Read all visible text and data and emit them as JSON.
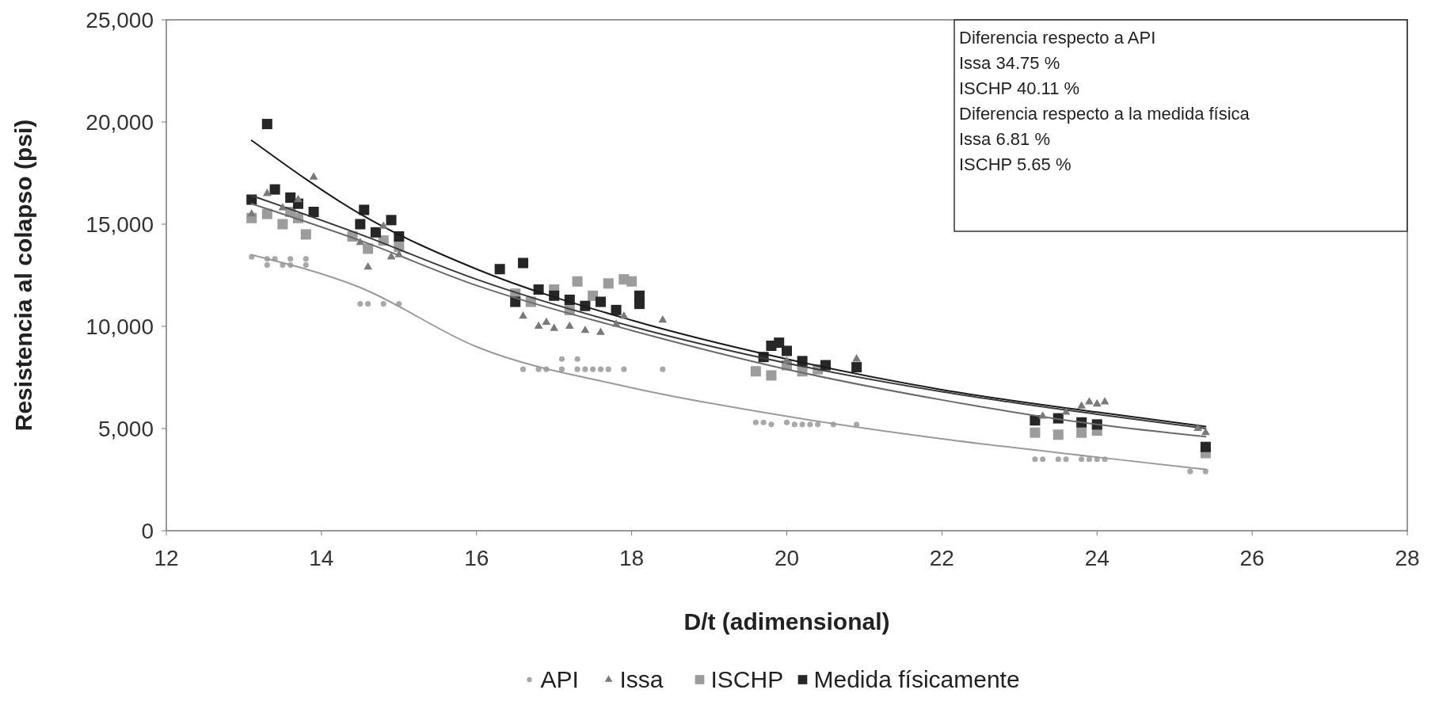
{
  "chart_data": {
    "type": "scatter",
    "xlabel": "D/t (adimensional)",
    "ylabel": "Resistencia al colapso (psi)",
    "xlim": [
      12,
      28
    ],
    "xticks": [
      12,
      14,
      16,
      18,
      20,
      22,
      24,
      26,
      28
    ],
    "ylim": [
      0,
      25000
    ],
    "yticks": [
      {
        "value": 0,
        "label": "0"
      },
      {
        "value": 5000,
        "label": "5,000"
      },
      {
        "value": 10000,
        "label": "10,000"
      },
      {
        "value": 15000,
        "label": "15,000"
      },
      {
        "value": 20000,
        "label": "20,000"
      },
      {
        "value": 25000,
        "label": "25,000"
      }
    ],
    "grid": false,
    "legend": "bottom",
    "annotations": [
      "Diferencia respecto a API",
      "Issa 34.75 %",
      "ISCHP 40.11 %",
      "Diferencia respecto a la medida física",
      "Issa 6.81 %",
      "ISCHP 5.65 %"
    ],
    "series": [
      {
        "name": "API",
        "marker": "circle",
        "color": "#a8a8a8",
        "x": [
          13.1,
          13.3,
          13.4,
          13.6,
          13.8,
          13.3,
          13.5,
          13.6,
          13.8,
          14.5,
          14.6,
          14.8,
          15.0,
          16.6,
          16.8,
          16.9,
          17.1,
          17.3,
          17.4,
          17.5,
          17.6,
          17.7,
          17.9,
          17.1,
          17.3,
          18.4,
          19.6,
          19.7,
          19.8,
          20.0,
          20.1,
          20.2,
          20.3,
          20.4,
          20.6,
          20.9,
          23.2,
          23.3,
          23.5,
          23.6,
          23.8,
          23.9,
          24.0,
          24.1,
          25.2,
          25.4
        ],
        "values": [
          13400,
          13300,
          13300,
          13300,
          13300,
          13000,
          13000,
          13000,
          13000,
          11100,
          11100,
          11100,
          11100,
          7900,
          7900,
          7900,
          7900,
          7900,
          7900,
          7900,
          7900,
          7900,
          7900,
          8400,
          8400,
          7900,
          5300,
          5300,
          5200,
          5300,
          5200,
          5200,
          5200,
          5200,
          5200,
          5200,
          3500,
          3500,
          3500,
          3500,
          3500,
          3500,
          3500,
          3500,
          2900,
          2900
        ]
      },
      {
        "name": "Issa",
        "marker": "triangle",
        "color": "#7a7a7a",
        "x": [
          13.1,
          13.3,
          13.5,
          13.7,
          13.9,
          14.5,
          14.6,
          14.8,
          14.9,
          15.0,
          16.6,
          16.8,
          16.9,
          17.0,
          17.2,
          17.4,
          17.6,
          17.8,
          17.9,
          18.4,
          20.0,
          20.9,
          23.3,
          23.6,
          23.8,
          23.9,
          24.0,
          24.1,
          25.3,
          25.4
        ],
        "values": [
          15500,
          16500,
          15800,
          16200,
          17300,
          14100,
          12900,
          14900,
          13400,
          13500,
          10500,
          10000,
          10200,
          9900,
          10000,
          9800,
          9700,
          10100,
          10500,
          10300,
          8300,
          8400,
          5600,
          5800,
          6100,
          6300,
          6200,
          6300,
          5000,
          4800
        ]
      },
      {
        "name": "ISCHP",
        "marker": "square",
        "color": "#9c9c9c",
        "x": [
          13.1,
          13.3,
          13.5,
          13.6,
          13.7,
          13.8,
          14.4,
          14.6,
          14.8,
          15.0,
          16.5,
          16.7,
          17.0,
          17.2,
          17.3,
          17.5,
          17.7,
          17.9,
          18.0,
          19.6,
          19.8,
          20.0,
          20.2,
          20.4,
          23.2,
          23.5,
          23.8,
          24.0,
          25.4
        ],
        "values": [
          15300,
          15500,
          15000,
          15600,
          15300,
          14500,
          14400,
          13800,
          14200,
          13900,
          11600,
          11200,
          11800,
          10800,
          12200,
          11500,
          12100,
          12300,
          12200,
          7800,
          7600,
          8100,
          7800,
          7900,
          4800,
          4700,
          4800,
          4900,
          3800
        ]
      },
      {
        "name": "Medida físicamente",
        "marker": "square",
        "color": "#262626",
        "x": [
          13.1,
          13.3,
          13.4,
          13.6,
          13.7,
          13.9,
          14.5,
          14.55,
          14.7,
          14.9,
          15.0,
          16.3,
          16.6,
          16.5,
          16.8,
          17.0,
          17.2,
          17.4,
          17.6,
          17.8,
          18.1,
          18.1,
          19.7,
          19.8,
          19.9,
          20.0,
          20.2,
          20.5,
          20.9,
          23.2,
          23.5,
          23.8,
          24.0,
          25.4
        ],
        "values": [
          16200,
          19900,
          16700,
          16300,
          16000,
          15600,
          15000,
          15700,
          14600,
          15200,
          14400,
          12800,
          13100,
          11200,
          11800,
          11500,
          11300,
          11000,
          11200,
          10800,
          11100,
          11500,
          8500,
          9050,
          9200,
          8800,
          8300,
          8100,
          8000,
          5400,
          5500,
          5300,
          5200,
          4100
        ]
      },
      {
        "type": "line",
        "marker": "none",
        "line_style": "solid",
        "color": "#9a9a9a",
        "x": [
          13.1,
          14.5,
          16,
          18,
          20,
          22,
          24,
          25.4
        ],
        "values": [
          13500,
          11900,
          9000,
          7000,
          5600,
          4500,
          3600,
          3000
        ]
      },
      {
        "type": "line",
        "marker": "none",
        "line_style": "solid",
        "color": "#1a1a1a",
        "x": [
          13.1,
          14.5,
          16,
          18,
          20,
          22,
          24,
          25.4
        ],
        "values": [
          19100,
          15500,
          12800,
          10300,
          8400,
          6900,
          5800,
          5100
        ]
      },
      {
        "type": "line",
        "marker": "none",
        "line_style": "solid",
        "color": "#3a3a3a",
        "x": [
          13.1,
          14.5,
          16,
          18,
          20,
          22,
          24,
          25.4
        ],
        "values": [
          16400,
          14500,
          12300,
          10000,
          8200,
          6800,
          5700,
          5000
        ]
      },
      {
        "type": "line",
        "marker": "none",
        "line_style": "solid",
        "color": "#6a6a6a",
        "x": [
          13.1,
          14.5,
          16,
          18,
          20,
          22,
          24,
          25.4
        ],
        "values": [
          16000,
          14200,
          12000,
          9800,
          7900,
          6400,
          5200,
          4600
        ]
      }
    ]
  }
}
